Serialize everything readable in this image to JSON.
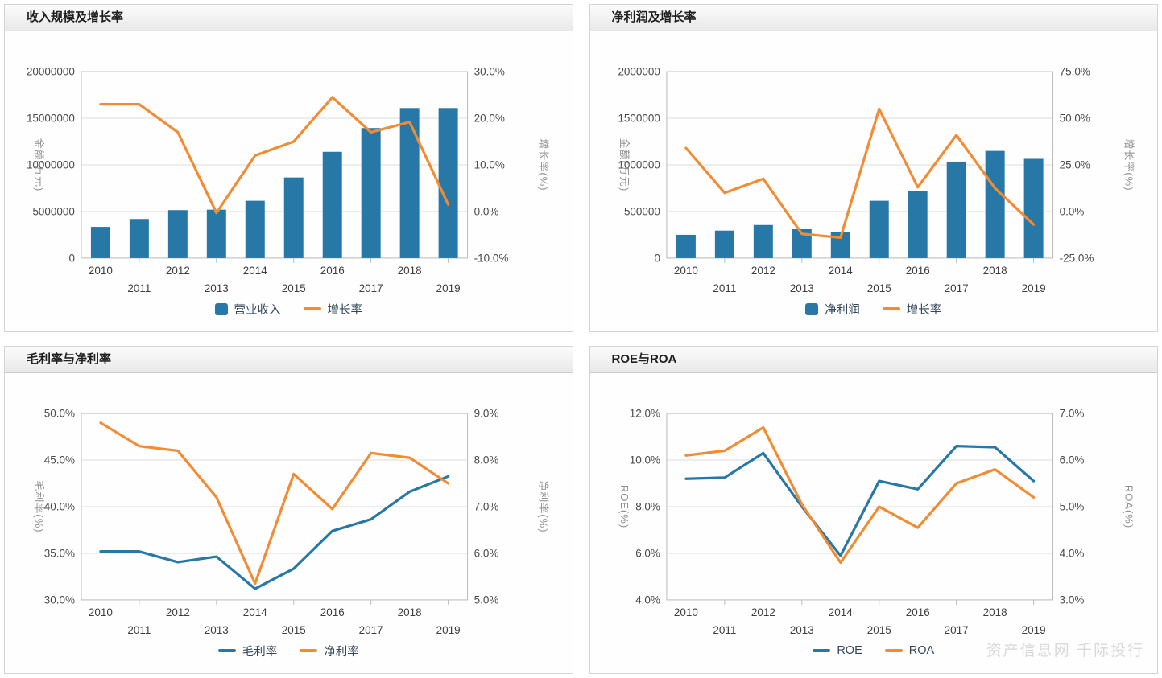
{
  "watermark": "资产信息网 千际投行",
  "colors": {
    "series_blue": "#2878a7",
    "series_orange": "#f28b31",
    "grid_line": "#dcdcdc",
    "plot_border": "#b9b9b9",
    "tick_text": "#4a4a4a",
    "axis_title_text": "#909090",
    "legend_text": "#33475b",
    "panel_title_text": "#1f1f1f"
  },
  "chart_data": [
    {
      "id": "revenue-growth",
      "type": "combo-bar-line",
      "title": "收入规模及增长率",
      "categories": [
        "2010",
        "2011",
        "2012",
        "2013",
        "2014",
        "2015",
        "2016",
        "2017",
        "2018",
        "2019"
      ],
      "left_axis": {
        "title": "金额(万元)",
        "min": 0,
        "max": 20000000,
        "tick_labels": [
          "20000000",
          "15000000",
          "10000000",
          "5000000",
          "0"
        ]
      },
      "right_axis": {
        "title": "增长率(%)",
        "min": -10,
        "max": 30,
        "tick_labels": [
          "30.0%",
          "20.0%",
          "10.0%",
          "0.0%",
          "-10.0%"
        ]
      },
      "series": [
        {
          "name": "营业收入",
          "type": "bar",
          "axis": "left",
          "color": "#2878a7",
          "values": [
            3350000,
            4200000,
            5150000,
            5200000,
            6150000,
            8650000,
            11400000,
            13950000,
            16100000,
            16100000
          ]
        },
        {
          "name": "增长率",
          "type": "line",
          "axis": "right",
          "color": "#f28b31",
          "values": [
            23,
            23,
            17,
            -0.3,
            12,
            15,
            24.5,
            17,
            19.2,
            1.5
          ]
        }
      ]
    },
    {
      "id": "netprofit-growth",
      "type": "combo-bar-line",
      "title": "净利润及增长率",
      "categories": [
        "2010",
        "2011",
        "2012",
        "2013",
        "2014",
        "2015",
        "2016",
        "2017",
        "2018",
        "2019"
      ],
      "left_axis": {
        "title": "金额(万元)",
        "min": 0,
        "max": 2000000,
        "tick_labels": [
          "2000000",
          "1500000",
          "1000000",
          "500000",
          "0"
        ]
      },
      "right_axis": {
        "title": "增长率(%)",
        "min": -25,
        "max": 75,
        "tick_labels": [
          "75.0%",
          "50.0%",
          "25.0%",
          "0.0%",
          "-25.0%"
        ]
      },
      "series": [
        {
          "name": "净利润",
          "type": "bar",
          "axis": "left",
          "color": "#2878a7",
          "values": [
            250000,
            295000,
            355000,
            310000,
            280000,
            615000,
            720000,
            1035000,
            1150000,
            1065000
          ]
        },
        {
          "name": "增长率",
          "type": "line",
          "axis": "right",
          "color": "#f28b31",
          "values": [
            34,
            10,
            17.5,
            -12,
            -14,
            55,
            13,
            41,
            12.5,
            -7
          ]
        }
      ]
    },
    {
      "id": "margins",
      "type": "dual-line",
      "title": "毛利率与净利率",
      "categories": [
        "2010",
        "2011",
        "2012",
        "2013",
        "2014",
        "2015",
        "2016",
        "2017",
        "2018",
        "2019"
      ],
      "left_axis": {
        "title": "毛利率(%)",
        "min": 30,
        "max": 50,
        "tick_labels": [
          "50.0%",
          "45.0%",
          "40.0%",
          "35.0%",
          "30.0%"
        ]
      },
      "right_axis": {
        "title": "净利率(%)",
        "min": 5,
        "max": 9,
        "tick_labels": [
          "9.0%",
          "8.0%",
          "7.0%",
          "6.0%",
          "5.0%"
        ]
      },
      "series": [
        {
          "name": "毛利率",
          "type": "line",
          "axis": "left",
          "color": "#2878a7",
          "values": [
            35.2,
            35.2,
            34.05,
            34.65,
            31.2,
            33.35,
            37.4,
            38.65,
            41.6,
            43.25
          ]
        },
        {
          "name": "净利率",
          "type": "line",
          "axis": "right",
          "color": "#f28b31",
          "values": [
            8.8,
            8.3,
            8.2,
            7.2,
            5.35,
            7.7,
            6.95,
            8.15,
            8.05,
            7.5
          ]
        }
      ]
    },
    {
      "id": "roe-roa",
      "type": "dual-line",
      "title": "ROE与ROA",
      "categories": [
        "2010",
        "2011",
        "2012",
        "2013",
        "2014",
        "2015",
        "2016",
        "2017",
        "2018",
        "2019"
      ],
      "left_axis": {
        "title": "ROE(%)",
        "min": 4,
        "max": 12,
        "tick_labels": [
          "12.0%",
          "10.0%",
          "8.0%",
          "6.0%",
          "4.0%"
        ]
      },
      "right_axis": {
        "title": "ROA(%)",
        "min": 3,
        "max": 7,
        "tick_labels": [
          "7.0%",
          "6.0%",
          "5.0%",
          "4.0%",
          "3.0%"
        ]
      },
      "series": [
        {
          "name": "ROE",
          "type": "line",
          "axis": "left",
          "color": "#2878a7",
          "values": [
            9.2,
            9.25,
            10.3,
            8.0,
            5.9,
            9.1,
            8.75,
            10.6,
            10.55,
            9.1
          ]
        },
        {
          "name": "ROA",
          "type": "line",
          "axis": "right",
          "color": "#f28b31",
          "values": [
            6.1,
            6.2,
            6.7,
            5.05,
            3.8,
            5.0,
            4.55,
            5.5,
            5.8,
            5.2
          ]
        }
      ]
    }
  ]
}
